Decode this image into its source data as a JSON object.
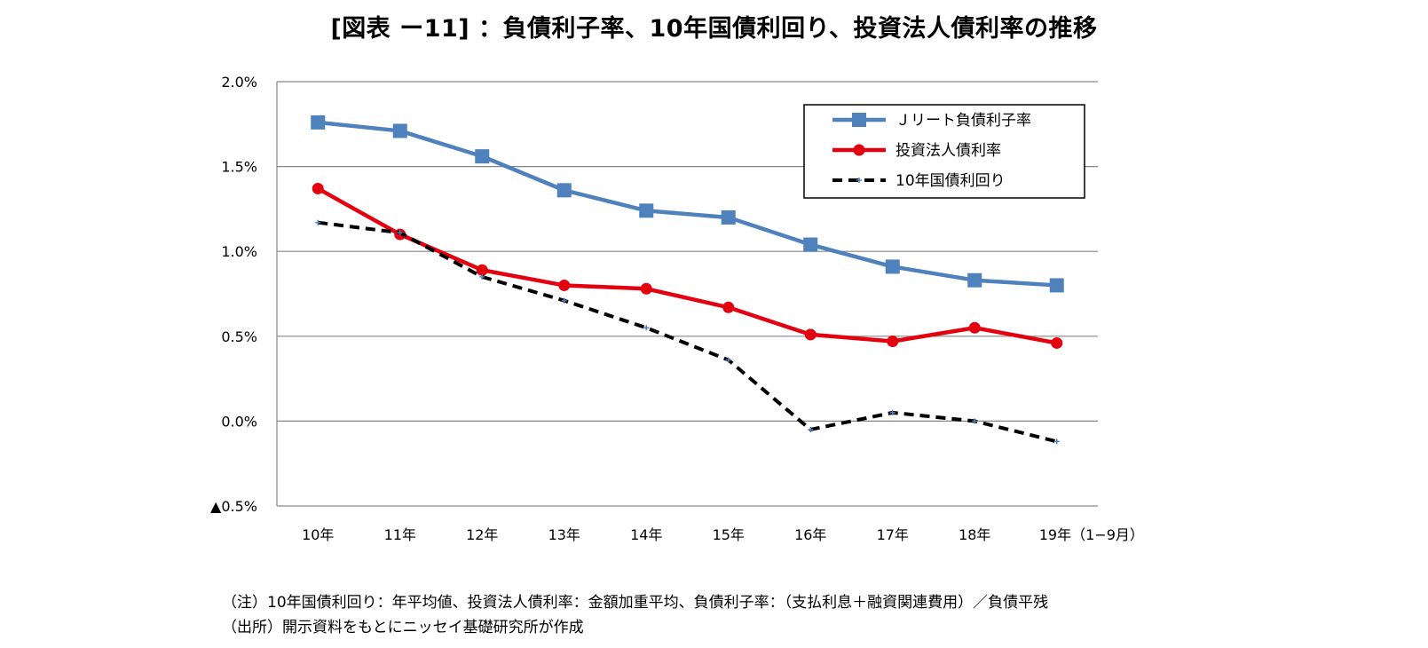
{
  "title": "[図表 ー11] ：負債利子率、10年国債利回り、投資法人債利率の推移",
  "notes": {
    "line1": "（注）10年国債利回り：年平均値、投資法人債利率：金額加重平均、負債利子率：（支払利息＋融資関連費用）／負債平残",
    "line2": "（出所）開示資料をもとにニッセイ基礎研究所が作成"
  },
  "colors": {
    "series1": "#4F81BD",
    "series2": "#E3000F",
    "series3": "#000000",
    "grid": "#868686"
  },
  "chart_data": {
    "type": "line",
    "categories": [
      "10年",
      "11年",
      "12年",
      "13年",
      "14年",
      "15年",
      "16年",
      "17年",
      "18年",
      "19年（1−9月）"
    ],
    "ylim": [
      -0.5,
      2.0
    ],
    "yticks": [
      {
        "value": 2.0,
        "label": "2.0%"
      },
      {
        "value": 1.5,
        "label": "1.5%"
      },
      {
        "value": 1.0,
        "label": "1.0%"
      },
      {
        "value": 0.5,
        "label": "0.5%"
      },
      {
        "value": 0.0,
        "label": "0.0%"
      },
      {
        "value": -0.5,
        "label": "▲0.5%"
      }
    ],
    "grid": true,
    "legend_position": "top-right",
    "series": [
      {
        "name": "Ｊリート負債利子率",
        "marker": "square",
        "dash": false,
        "values": [
          1.76,
          1.71,
          1.56,
          1.36,
          1.24,
          1.2,
          1.04,
          0.91,
          0.83,
          0.8
        ]
      },
      {
        "name": "投資法人債利率",
        "marker": "circle",
        "dash": false,
        "values": [
          1.37,
          1.1,
          0.89,
          0.8,
          0.78,
          0.67,
          0.51,
          0.47,
          0.55,
          0.46
        ]
      },
      {
        "name": "10年国債利回り",
        "marker": "plus",
        "dash": true,
        "values": [
          1.17,
          1.11,
          0.85,
          0.71,
          0.55,
          0.36,
          -0.05,
          0.05,
          0.0,
          -0.12
        ]
      }
    ]
  }
}
